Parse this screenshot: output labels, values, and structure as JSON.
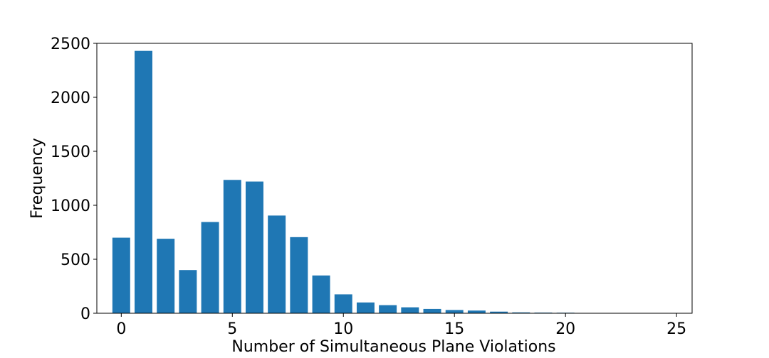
{
  "chart_data": {
    "type": "bar",
    "title": "",
    "xlabel": "Number of Simultaneous Plane Violations",
    "ylabel": "Frequency",
    "x": [
      0,
      1,
      2,
      3,
      4,
      5,
      6,
      7,
      8,
      9,
      10,
      11,
      12,
      13,
      14,
      15,
      16,
      17,
      18,
      19,
      20,
      21,
      22,
      23,
      24
    ],
    "values": [
      700,
      2430,
      690,
      400,
      845,
      1235,
      1220,
      905,
      705,
      350,
      175,
      100,
      75,
      55,
      40,
      30,
      25,
      15,
      8,
      6,
      5,
      2,
      1,
      1,
      1
    ],
    "xlim": [
      -1.1,
      25.7
    ],
    "ylim": [
      0,
      2500
    ],
    "xticks": [
      0,
      5,
      10,
      15,
      20,
      25
    ],
    "yticks": [
      0,
      500,
      1000,
      1500,
      2000,
      2500
    ],
    "grid": false,
    "bar_color": "#1f77b4"
  }
}
